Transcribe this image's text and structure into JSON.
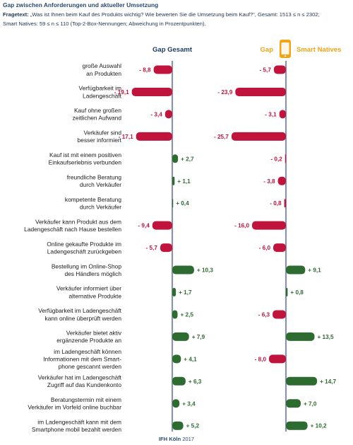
{
  "header": {
    "title": "Gap zwischen Anforderungen und aktueller Umsetzung",
    "question_label": "Fragetext:",
    "question_text": " „Was ist Ihnen beim Kauf des Produkts wichtig? Wie bewerten Sie die Umsetzung beim Kauf?“, Gesamt: 1513 ≤ n ≤ 2302;",
    "sample_text": "Smart Natives: 59 ≤ n ≤ 110 (Top-2-Box-Nennungen; Abweichung in Prozentpunkten)."
  },
  "footer": {
    "brand": "IFH Köln",
    "year": " 2017"
  },
  "colors": {
    "negative": "#c0143c",
    "positive": "#2e6b30",
    "axis": "#8a94a6",
    "gesamt": "#1f3a68",
    "smart": "#f2a416",
    "label": "#1a1a1a"
  },
  "chart_data": {
    "type": "bar",
    "orientation": "horizontal",
    "unit": "Prozentpunkte",
    "panels": [
      {
        "title": "Gap Gesamt",
        "title_parts": [
          "Gap Gesamt"
        ]
      },
      {
        "title": "Gap Smart Natives",
        "title_parts": [
          "Gap",
          "Smart Natives"
        ],
        "icon": "smartphone-icon"
      }
    ],
    "categories": [
      [
        "große Auswahl",
        "an Produkten"
      ],
      [
        "Verfügbarkeit im",
        "Ladengeschäft"
      ],
      [
        "Kauf ohne großen",
        "zeitlichen Aufwand"
      ],
      [
        "Verkäufer sind",
        "besser informiert"
      ],
      [
        "Kauf ist mit einem positiven",
        "Einkaufserlebnis verbunden"
      ],
      [
        "freundliche Beratung",
        "durch Verkäufer"
      ],
      [
        "kompetente Beratung",
        "durch Verkäufer"
      ],
      [
        "Verkäufer kann Produkt aus dem",
        "Ladengeschäft nach Hause bestellen"
      ],
      [
        "Online gekaufte Produkte im",
        "Ladengeschäft zurückgeben"
      ],
      [
        "Bestellung im Online-Shop",
        "des Händlers möglich"
      ],
      [
        "Verkäufer informiert über",
        "alternative Produkte"
      ],
      [
        "Verfügbarkeit im Ladengeschäft",
        "kann online überprüft werden"
      ],
      [
        "Verkäufer bietet aktiv",
        "ergänzende Produkte an"
      ],
      [
        "im Ladengeschäft können",
        "Informationen mit dem Smart-",
        "phone gescannt werden"
      ],
      [
        "Verkäufer hat im Ladengeschäft",
        "Zugriff auf das Kundenkonto"
      ],
      [
        "Beratungstermin mit einem",
        "Verkäufer im Vorfeld online buchbar"
      ],
      [
        "im Ladengeschäft kann mit dem",
        "Smartphone mobil bezahlt werden"
      ]
    ],
    "series": [
      {
        "name": "Gap Gesamt",
        "values": [
          -8.8,
          -19.1,
          -3.4,
          -17.1,
          2.7,
          1.1,
          0.4,
          -9.4,
          -5.7,
          10.3,
          1.7,
          2.5,
          7.9,
          4.1,
          6.3,
          3.4,
          5.2
        ],
        "labels": [
          "- 8,8",
          "- 19,1",
          "- 3,4",
          "- 17,1",
          "+ 2,7",
          "+ 1,1",
          "+ 0,4",
          "- 9,4",
          "- 5,7",
          "+ 10,3",
          "+ 1,7",
          "+ 2,5",
          "+ 7,9",
          "+ 4,1",
          "+ 6,3",
          "+ 3,4",
          "+ 5,2"
        ]
      },
      {
        "name": "Gap Smart Natives",
        "values": [
          -5.7,
          -23.9,
          -3.1,
          -25.7,
          -0.2,
          -3.8,
          -0.8,
          -16.0,
          -6.0,
          9.1,
          0.8,
          -6.3,
          13.5,
          -8.0,
          14.7,
          7.0,
          10.2
        ],
        "labels": [
          "- 5,7",
          "- 23,9",
          "- 3,1",
          "- 25,7",
          "- 0,2",
          "- 3,8",
          "- 0,8",
          "- 16,0",
          "- 6,0",
          "+ 9,1",
          "+ 0,8",
          "- 6,3",
          "+ 13,5",
          "- 8,0",
          "+ 14,7",
          "+ 7,0",
          "+ 10,2"
        ]
      }
    ]
  }
}
